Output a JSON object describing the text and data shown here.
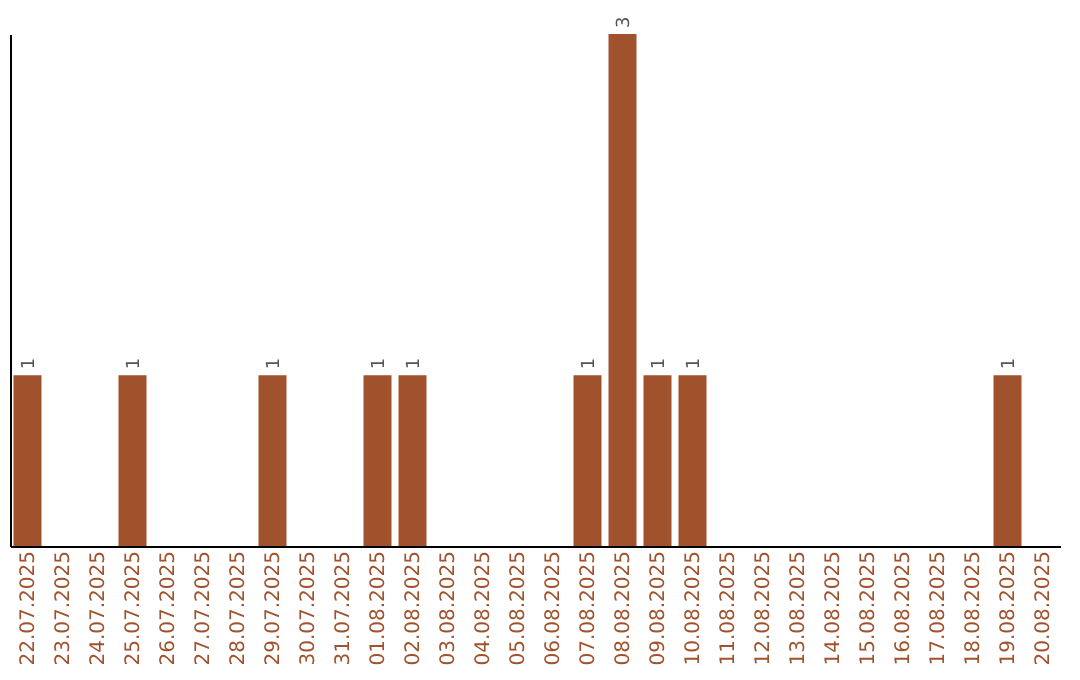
{
  "chart_data": {
    "type": "bar",
    "categories": [
      "22.07.2025",
      "23.07.2025",
      "24.07.2025",
      "25.07.2025",
      "26.07.2025",
      "27.07.2025",
      "28.07.2025",
      "29.07.2025",
      "30.07.2025",
      "31.07.2025",
      "01.08.2025",
      "02.08.2025",
      "03.08.2025",
      "04.08.2025",
      "05.08.2025",
      "06.08.2025",
      "07.08.2025",
      "08.08.2025",
      "09.08.2025",
      "10.08.2025",
      "11.08.2025",
      "12.08.2025",
      "13.08.2025",
      "14.08.2025",
      "15.08.2025",
      "16.08.2025",
      "17.08.2025",
      "18.08.2025",
      "19.08.2025",
      "20.08.2025"
    ],
    "values": [
      1,
      0,
      0,
      1,
      0,
      0,
      0,
      1,
      0,
      0,
      1,
      1,
      0,
      0,
      0,
      0,
      1,
      3,
      1,
      1,
      0,
      0,
      0,
      0,
      0,
      0,
      0,
      0,
      1,
      0
    ],
    "value_labels": [
      "1",
      null,
      null,
      "1",
      null,
      null,
      null,
      "1",
      null,
      null,
      "1",
      "1",
      null,
      null,
      null,
      null,
      "1",
      "3",
      "1",
      "1",
      null,
      null,
      null,
      null,
      null,
      null,
      null,
      null,
      "1",
      null
    ],
    "color": "#a0522d",
    "grid": false,
    "tick_labels": "x"
  }
}
